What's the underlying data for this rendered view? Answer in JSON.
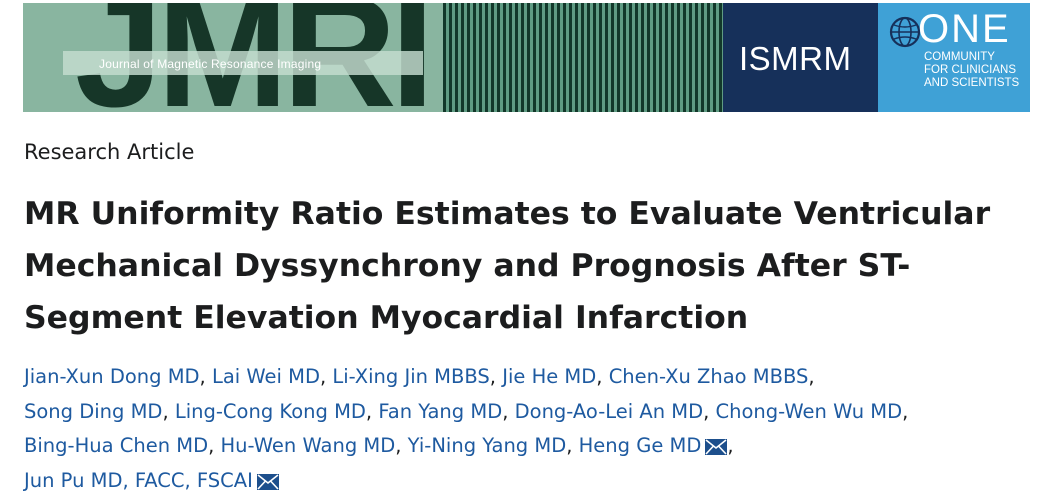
{
  "banner": {
    "journal_logo_text": "JMRI",
    "journal_full_name": "Journal of Magnetic Resonance Imaging",
    "society_name": "ISMRM",
    "tagline_big": "ONE",
    "tagline_small": [
      "COMMUNITY",
      "FOR CLINICIANS",
      "AND SCIENTISTS"
    ],
    "colors": {
      "journal_green": "#89b5a0",
      "journal_dark": "#163628",
      "society_navy": "#16305a",
      "tagline_blue": "#3fa1d6"
    }
  },
  "article": {
    "type": "Research Article",
    "title": "MR Uniformity Ratio Estimates to Evaluate Ventricular Mechanical Dyssynchrony and Prognosis After ST-Segment Elevation Myocardial Infarction",
    "authors": [
      [
        "Jian-Xun Dong MD",
        "Lai Wei MD",
        "Li-Xing Jin MBBS",
        "Jie He MD",
        "Chen-Xu Zhao MBBS"
      ],
      [
        "Song Ding MD",
        "Ling-Cong Kong MD",
        "Fan Yang MD",
        "Dong-Ao-Lei An MD",
        "Chong-Wen Wu MD"
      ],
      [
        "Bing-Hua Chen MD",
        "Hu-Wen Wang MD",
        "Yi-Ning Yang MD",
        "Heng Ge MD"
      ],
      [
        "Jun Pu MD, FACC, FSCAI"
      ]
    ],
    "separator": ",",
    "corresponding_authors": [
      "Heng Ge MD",
      "Jun Pu MD, FACC, FSCAI"
    ],
    "icons": {
      "corresponding": "envelope-icon"
    },
    "colors": {
      "author_link": "#1e5aa0",
      "text": "#1c1d1e"
    }
  }
}
